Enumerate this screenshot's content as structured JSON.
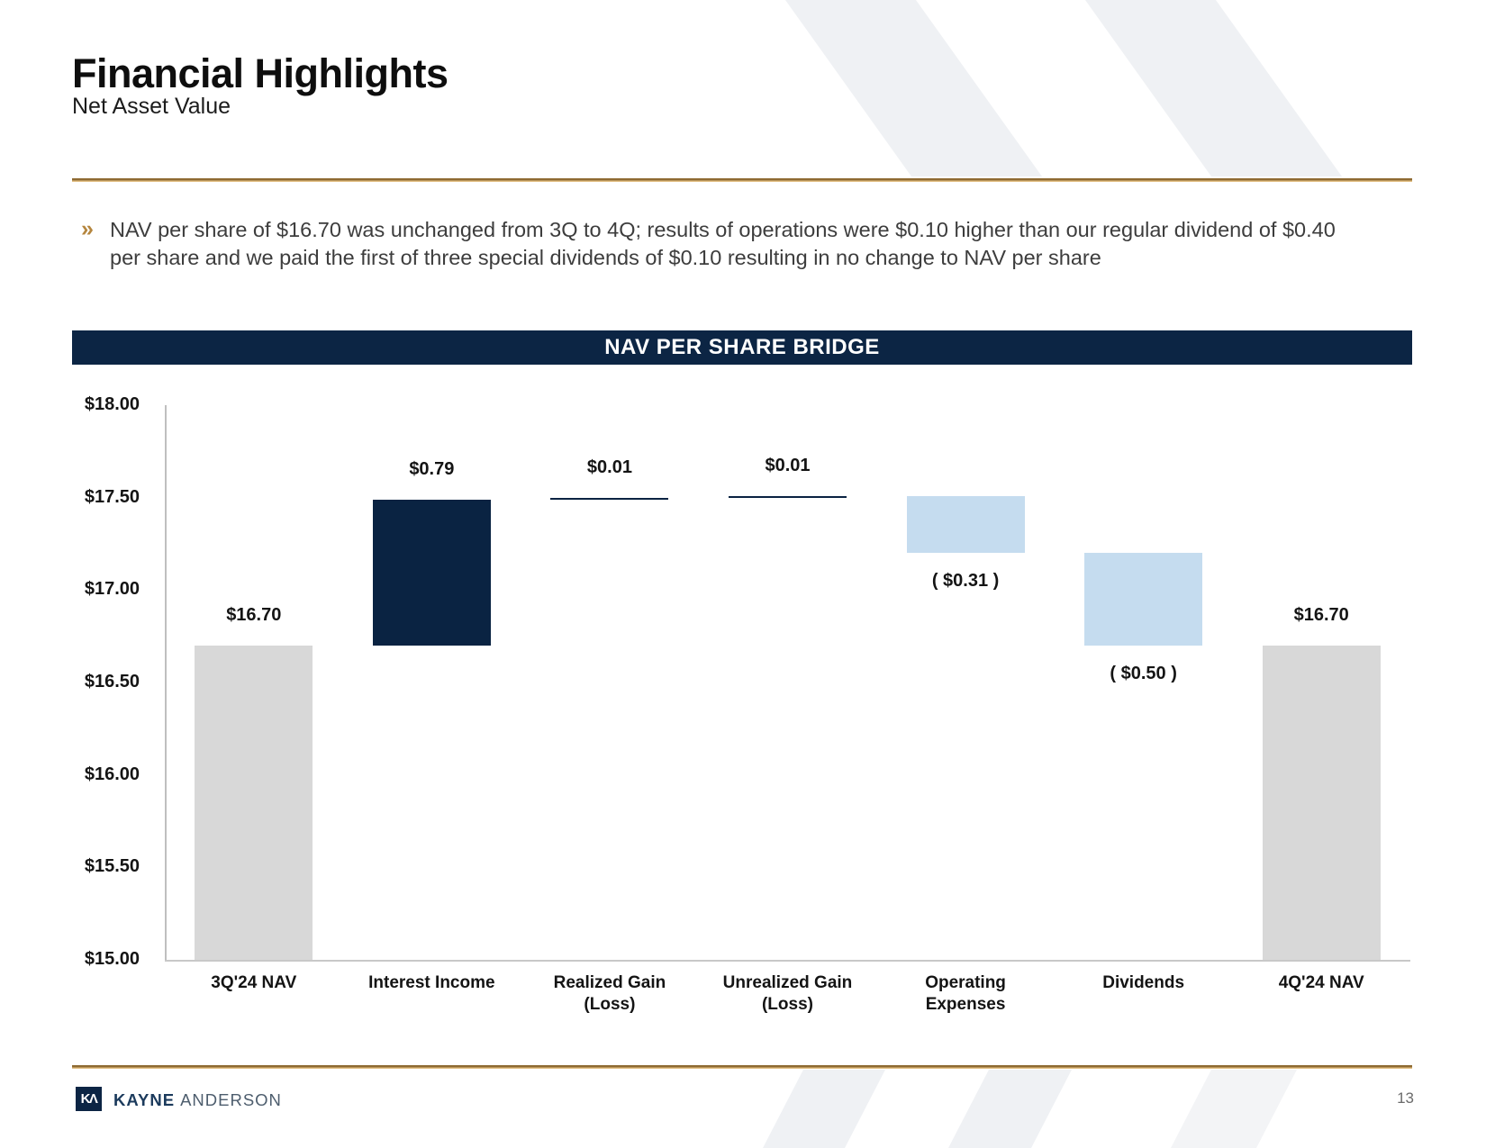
{
  "slide": {
    "title": "Financial Highlights",
    "subtitle": "Net Asset Value",
    "bullet_marker": "»",
    "bullet_text": "NAV per share of $16.70 was unchanged from 3Q to 4Q; results of operations were $0.10 higher than our regular dividend of $0.40 per share and we paid the first of three special dividends of $0.10 resulting in no change to NAV per share",
    "page_number": "13"
  },
  "footer": {
    "logo_monogram": "KΛ",
    "brand_primary": "KAYNE",
    "brand_secondary": "ANDERSON"
  },
  "chart_data": {
    "type": "bar",
    "subtype": "waterfall",
    "title": "NAV PER SHARE BRIDGE",
    "xlabel": "",
    "ylabel": "",
    "ylim": [
      15.0,
      18.0
    ],
    "grid": false,
    "legend": "none",
    "ytick_values": [
      18.0,
      17.5,
      17.0,
      16.5,
      16.0,
      15.5,
      15.0
    ],
    "ytick_labels": [
      "$18.00",
      "$17.50",
      "$17.00",
      "$16.50",
      "$16.00",
      "$15.50",
      "$15.00"
    ],
    "categories": [
      "3Q'24 NAV",
      "Interest Income",
      "Realized Gain (Loss)",
      "Unrealized Gain (Loss)",
      "Operating Expenses",
      "Dividends",
      "4Q'24 NAV"
    ],
    "bars": [
      {
        "category_lines": [
          "3Q'24 NAV"
        ],
        "start": 15.0,
        "end": 16.7,
        "role": "total",
        "label": "$16.70",
        "label_pos": "above"
      },
      {
        "category_lines": [
          "Interest Income"
        ],
        "start": 16.7,
        "end": 17.49,
        "role": "increase",
        "label": "$0.79",
        "label_pos": "above"
      },
      {
        "category_lines": [
          "Realized Gain",
          "(Loss)"
        ],
        "start": 17.49,
        "end": 17.5,
        "role": "increase",
        "label": "$0.01",
        "label_pos": "above"
      },
      {
        "category_lines": [
          "Unrealized Gain",
          "(Loss)"
        ],
        "start": 17.5,
        "end": 17.51,
        "role": "increase",
        "label": "$0.01",
        "label_pos": "above"
      },
      {
        "category_lines": [
          "Operating",
          "Expenses"
        ],
        "start": 17.51,
        "end": 17.2,
        "role": "decrease",
        "label": "( $0.31 )",
        "label_pos": "below"
      },
      {
        "category_lines": [
          "Dividends"
        ],
        "start": 17.2,
        "end": 16.7,
        "role": "decrease",
        "label": "( $0.50 )",
        "label_pos": "below"
      },
      {
        "category_lines": [
          "4Q'24 NAV"
        ],
        "start": 15.0,
        "end": 16.7,
        "role": "total",
        "label": "$16.70",
        "label_pos": "above"
      }
    ],
    "colors": {
      "total": "#d8d8d8",
      "increase": "#0a2342",
      "decrease": "#c5dcef",
      "axis": "#bfbfbf",
      "banner_bg": "#0c2544",
      "banner_text": "#ffffff"
    }
  },
  "theme": {
    "accent_gold_dark": "#8e6a32",
    "accent_gold_light": "#e2bf83",
    "navy": "#0c2544",
    "stripe_gray": "#eff1f4"
  }
}
